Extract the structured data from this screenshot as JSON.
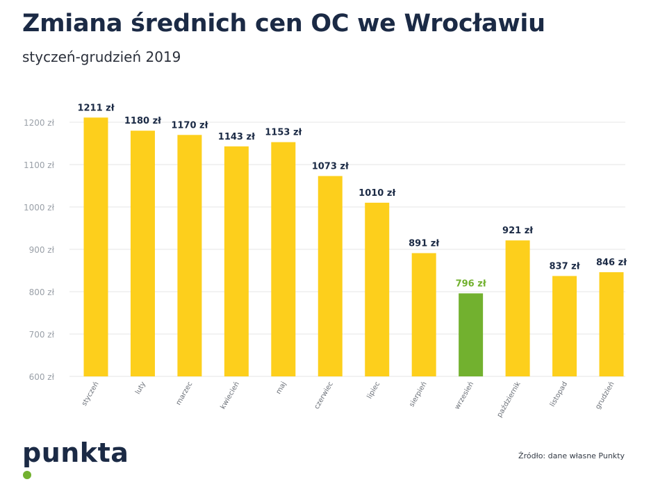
{
  "title": "Zmiana średnich cen OC we Wrocławiu",
  "subtitle": "styczeń-grudzień 2019",
  "brand": "punkta",
  "source": "Źródło: dane własne Punkty",
  "colors": {
    "bar": "#fdcf1c",
    "highlight": "#72b12f",
    "label": "#1b2a45",
    "tick": "#9aa0a8",
    "grid": "#e6e6e6"
  },
  "chart_data": {
    "type": "bar",
    "categories": [
      "styczeń",
      "luty",
      "marzec",
      "kwiecień",
      "maj",
      "czerwiec",
      "lipiec",
      "sierpień",
      "wrzesień",
      "październik",
      "listopad",
      "grudzień"
    ],
    "values": [
      1211,
      1180,
      1170,
      1143,
      1153,
      1073,
      1010,
      891,
      796,
      921,
      837,
      846
    ],
    "value_labels": [
      "1211 zł",
      "1180 zł",
      "1170 zł",
      "1143 zł",
      "1153 zł",
      "1073 zł",
      "1010 zł",
      "891 zł",
      "796 zł",
      "921 zł",
      "837 zł",
      "846 zł"
    ],
    "highlight_index": 8,
    "yticks": [
      600,
      700,
      800,
      900,
      1000,
      1100,
      1200
    ],
    "ytick_labels": [
      "600 zł",
      "700 zł",
      "800 zł",
      "900 zł",
      "1000 zł",
      "1100 zł",
      "1200 zł"
    ],
    "ylim": [
      600,
      1200
    ],
    "grid": true,
    "legend": "none"
  }
}
